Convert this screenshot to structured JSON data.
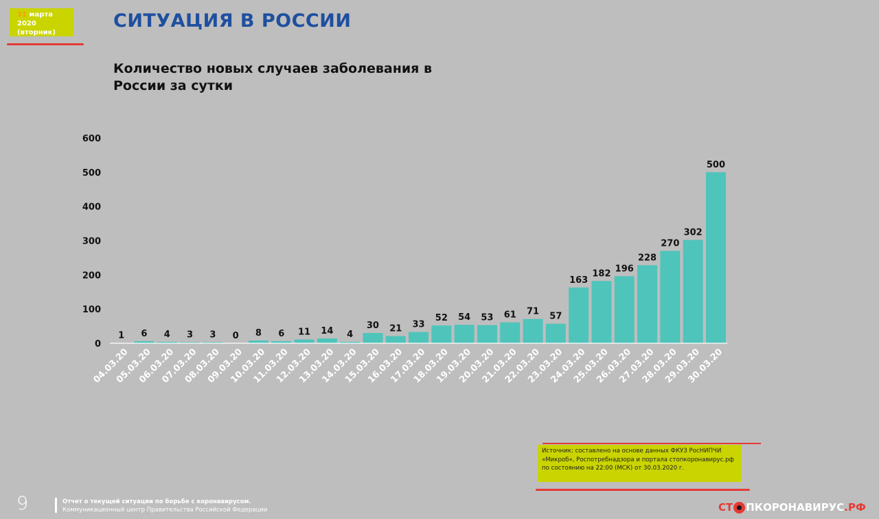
{
  "header": {
    "date_day": "31",
    "date_rest": " марта 2020",
    "date_weekday": "(вторник)",
    "title": "СИТУАЦИЯ В РОССИИ"
  },
  "chart_data": {
    "type": "bar",
    "title": "Количество новых случаев заболевания в России за сутки",
    "xlabel": "",
    "ylabel": "",
    "ylim": [
      0,
      600
    ],
    "yticks": [
      0,
      100,
      200,
      300,
      400,
      500,
      600
    ],
    "grid": false,
    "bar_color": "#4fc4bb",
    "categories": [
      "04.03.20",
      "05.03.20",
      "06.03.20",
      "07.03.20",
      "08.03.20",
      "09.03.20",
      "10.03.20",
      "11.03.20",
      "12.03.20",
      "13.03.20",
      "14.03.20",
      "15.03.20",
      "16.03.20",
      "17.03.20",
      "18.03.20",
      "19.03.20",
      "20.03.20",
      "21.03.20",
      "22.03.20",
      "23.03.20",
      "24.03.20",
      "25.03.20",
      "26.03.20",
      "27.03.20",
      "28.03.20",
      "29.03.20",
      "30.03.20"
    ],
    "values": [
      1,
      6,
      4,
      3,
      3,
      0,
      8,
      6,
      11,
      14,
      4,
      30,
      21,
      33,
      52,
      54,
      53,
      61,
      71,
      57,
      163,
      182,
      196,
      228,
      270,
      302,
      500
    ]
  },
  "source": {
    "line1": "Источник: составлено на основе данных ФКУЗ РосНИПЧИ",
    "line2": "«Микроб», Роспотребнадзора и портала стопкоронавирус.рф",
    "line3": "по состоянию на 22:00 (МСК) от 30.03.2020 г."
  },
  "footer": {
    "page_number": "9",
    "line1": "Отчет о текущей ситуации по борьбе с коронавирусом.",
    "line2": "Коммуникационный центр Правительства Российской Федерации",
    "brand_red": "СТ",
    "brand_white": "ПКОРОНАВИРУС",
    "brand_suffix": ".РФ"
  }
}
